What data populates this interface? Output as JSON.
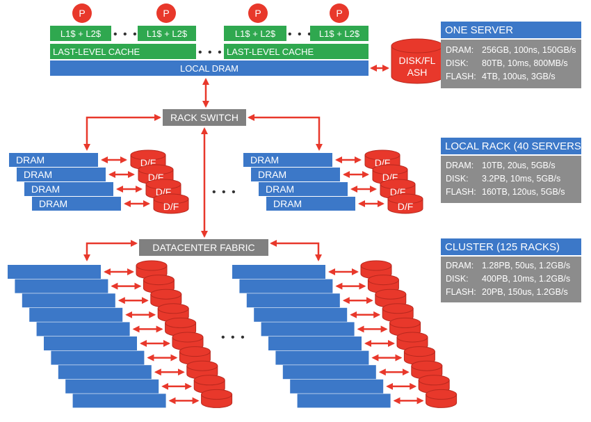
{
  "server": {
    "processor_label": "P",
    "cache_l1_l2": "L1$ + L2$",
    "last_level_cache": "LAST-LEVEL CACHE",
    "local_dram": "LOCAL DRAM",
    "disk_flash_line1": "DISK/FL",
    "disk_flash_line2": "ASH",
    "ellipsis": "• • •"
  },
  "rack": {
    "switch_label": "RACK SWITCH",
    "dram_label": "DRAM",
    "df_label": "D/F",
    "ellipsis": "• • •"
  },
  "cluster": {
    "fabric_label": "DATACENTER FABRIC",
    "ellipsis": "• • •"
  },
  "panels": [
    {
      "title": "ONE SERVER",
      "rows": [
        {
          "key": "DRAM:",
          "value": "256GB, 100ns, 150GB/s"
        },
        {
          "key": "DISK:",
          "value": "80TB, 10ms, 800MB/s"
        },
        {
          "key": "FLASH:",
          "value": "4TB, 100us, 3GB/s"
        }
      ]
    },
    {
      "title": "LOCAL RACK (40 SERVERS)",
      "rows": [
        {
          "key": "DRAM:",
          "value": "10TB, 20us, 5GB/s"
        },
        {
          "key": "DISK:",
          "value": "3.2PB, 10ms, 5GB/s"
        },
        {
          "key": "FLASH:",
          "value": "160TB, 120us, 5GB/s"
        }
      ]
    },
    {
      "title": "CLUSTER (125 RACKS)",
      "rows": [
        {
          "key": "DRAM:",
          "value": "1.28PB, 50us, 1.2GB/s"
        },
        {
          "key": "DISK:",
          "value": "400PB, 10ms, 1.2GB/s"
        },
        {
          "key": "FLASH:",
          "value": "20PB, 150us, 1.2GB/s"
        }
      ]
    }
  ],
  "colors": {
    "blue": "#3c78c8",
    "green": "#2fa84f",
    "red": "#e8382b",
    "gray_box": "#808080",
    "gray_panel": "#8c8c8c",
    "arrow": "#e8382b"
  }
}
